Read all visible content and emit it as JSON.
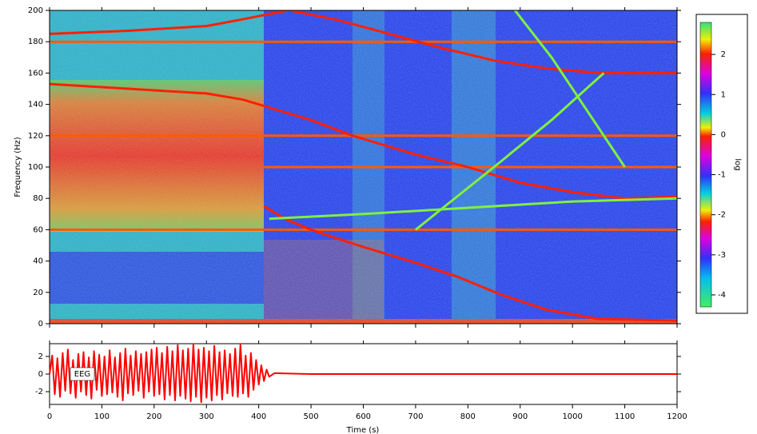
{
  "chart_data": [
    {
      "type": "spectrogram",
      "ylabel": "Frequency (Hz)",
      "xlim": [
        0,
        1200
      ],
      "xticks": [
        0,
        100,
        200,
        300,
        400,
        500,
        600,
        700,
        800,
        900,
        1000,
        1100,
        1200
      ],
      "ylim": [
        0,
        200
      ],
      "yticks": [
        0,
        20,
        40,
        60,
        80,
        100,
        120,
        140,
        160,
        180,
        200
      ],
      "colorbar": {
        "label": "log",
        "lim": [
          -4.3,
          2.8
        ],
        "ticks": [
          -4,
          -3,
          -2,
          -1,
          0,
          1,
          2
        ]
      },
      "series": [
        {
          "color": "#ff5a00",
          "x": [
            0,
            1200
          ],
          "values": [
            60,
            60
          ]
        },
        {
          "color": "#ff5a00",
          "x": [
            0,
            1200
          ],
          "values": [
            120,
            120
          ]
        },
        {
          "color": "#ff5a00",
          "x": [
            0,
            1200
          ],
          "values": [
            180,
            180
          ]
        },
        {
          "color": "#ff5a00",
          "x": [
            410,
            1200
          ],
          "values": [
            100,
            100
          ]
        },
        {
          "color": "#ff2000",
          "x": [
            0,
            150,
            300,
            380,
            455
          ],
          "values": [
            185,
            187,
            190,
            195,
            200
          ]
        },
        {
          "color": "#ff2000",
          "x": [
            460,
            550,
            650,
            750,
            850,
            950,
            1050,
            1200
          ],
          "values": [
            200,
            194,
            185,
            176,
            168,
            163,
            160,
            160
          ]
        },
        {
          "color": "#ff2000",
          "x": [
            0,
            100,
            200,
            300,
            370,
            420,
            500,
            580,
            700,
            800,
            900,
            1000,
            1100,
            1200
          ],
          "values": [
            153,
            151,
            149,
            147,
            143,
            138,
            130,
            120,
            108,
            100,
            90,
            84,
            80,
            81
          ]
        },
        {
          "color": "#ff2000",
          "x": [
            410,
            450,
            500,
            600,
            700,
            780,
            860,
            950,
            1050,
            1200
          ],
          "values": [
            75,
            67,
            60,
            49,
            39,
            30,
            19,
            9,
            3,
            2
          ]
        },
        {
          "color": "#80f040",
          "x": [
            420,
            600,
            800,
            1000,
            1200
          ],
          "values": [
            67,
            70,
            74,
            78,
            80
          ]
        },
        {
          "color": "#80f040",
          "x": [
            700,
            850,
            960,
            1060
          ],
          "values": [
            60,
            100,
            130,
            160
          ]
        },
        {
          "color": "#80f040",
          "x": [
            890,
            960,
            1040,
            1100
          ],
          "values": [
            200,
            170,
            130,
            100
          ]
        }
      ]
    },
    {
      "type": "line",
      "xlabel": "Time (s)",
      "xlim": [
        0,
        1200
      ],
      "xticks": [
        0,
        100,
        200,
        300,
        400,
        500,
        600,
        700,
        800,
        900,
        1000,
        1100,
        1200
      ],
      "ylim": [
        -3.45,
        3.45
      ],
      "yticks": [
        -2,
        0,
        2
      ],
      "series": [
        {
          "name": "EEG",
          "color": "#ff0000",
          "x": [
            0,
            5,
            10,
            15,
            20,
            25,
            30,
            35,
            40,
            45,
            50,
            55,
            60,
            65,
            70,
            75,
            80,
            85,
            90,
            95,
            100,
            105,
            110,
            115,
            120,
            125,
            130,
            135,
            140,
            145,
            150,
            155,
            160,
            165,
            170,
            175,
            180,
            185,
            190,
            195,
            200,
            205,
            210,
            215,
            220,
            225,
            230,
            235,
            240,
            245,
            250,
            255,
            260,
            265,
            270,
            275,
            280,
            285,
            290,
            295,
            300,
            305,
            310,
            315,
            320,
            325,
            330,
            335,
            340,
            345,
            350,
            355,
            360,
            365,
            370,
            375,
            380,
            385,
            390,
            395,
            400,
            405,
            410,
            415,
            420,
            430,
            500,
            600,
            1200
          ],
          "values": [
            0,
            2.1,
            -2.3,
            1.8,
            -2.6,
            2.4,
            -1.9,
            2.8,
            -2.2,
            1.6,
            -2.7,
            2.3,
            -2.0,
            2.5,
            -2.4,
            1.9,
            -2.8,
            2.6,
            -1.8,
            2.2,
            -2.5,
            2.0,
            -2.3,
            2.7,
            -2.1,
            1.9,
            -2.6,
            2.4,
            -3.0,
            2.9,
            -2.2,
            2.1,
            -2.4,
            2.6,
            -1.9,
            2.3,
            -2.7,
            2.5,
            -2.0,
            2.8,
            -2.5,
            3.0,
            -2.3,
            2.4,
            -2.9,
            3.1,
            -2.4,
            2.6,
            -3.0,
            3.3,
            -2.5,
            2.7,
            -2.8,
            2.9,
            -3.1,
            3.4,
            -2.6,
            2.8,
            -3.2,
            3.0,
            -2.7,
            2.6,
            -3.0,
            3.2,
            -2.4,
            2.5,
            -2.9,
            2.7,
            -2.2,
            2.3,
            -2.5,
            2.9,
            -2.6,
            3.4,
            -2.2,
            2.1,
            -2.6,
            2.4,
            -1.8,
            1.6,
            -1.2,
            1.0,
            -0.8,
            0.5,
            -0.3,
            0.1,
            0,
            0,
            0
          ]
        }
      ]
    }
  ]
}
